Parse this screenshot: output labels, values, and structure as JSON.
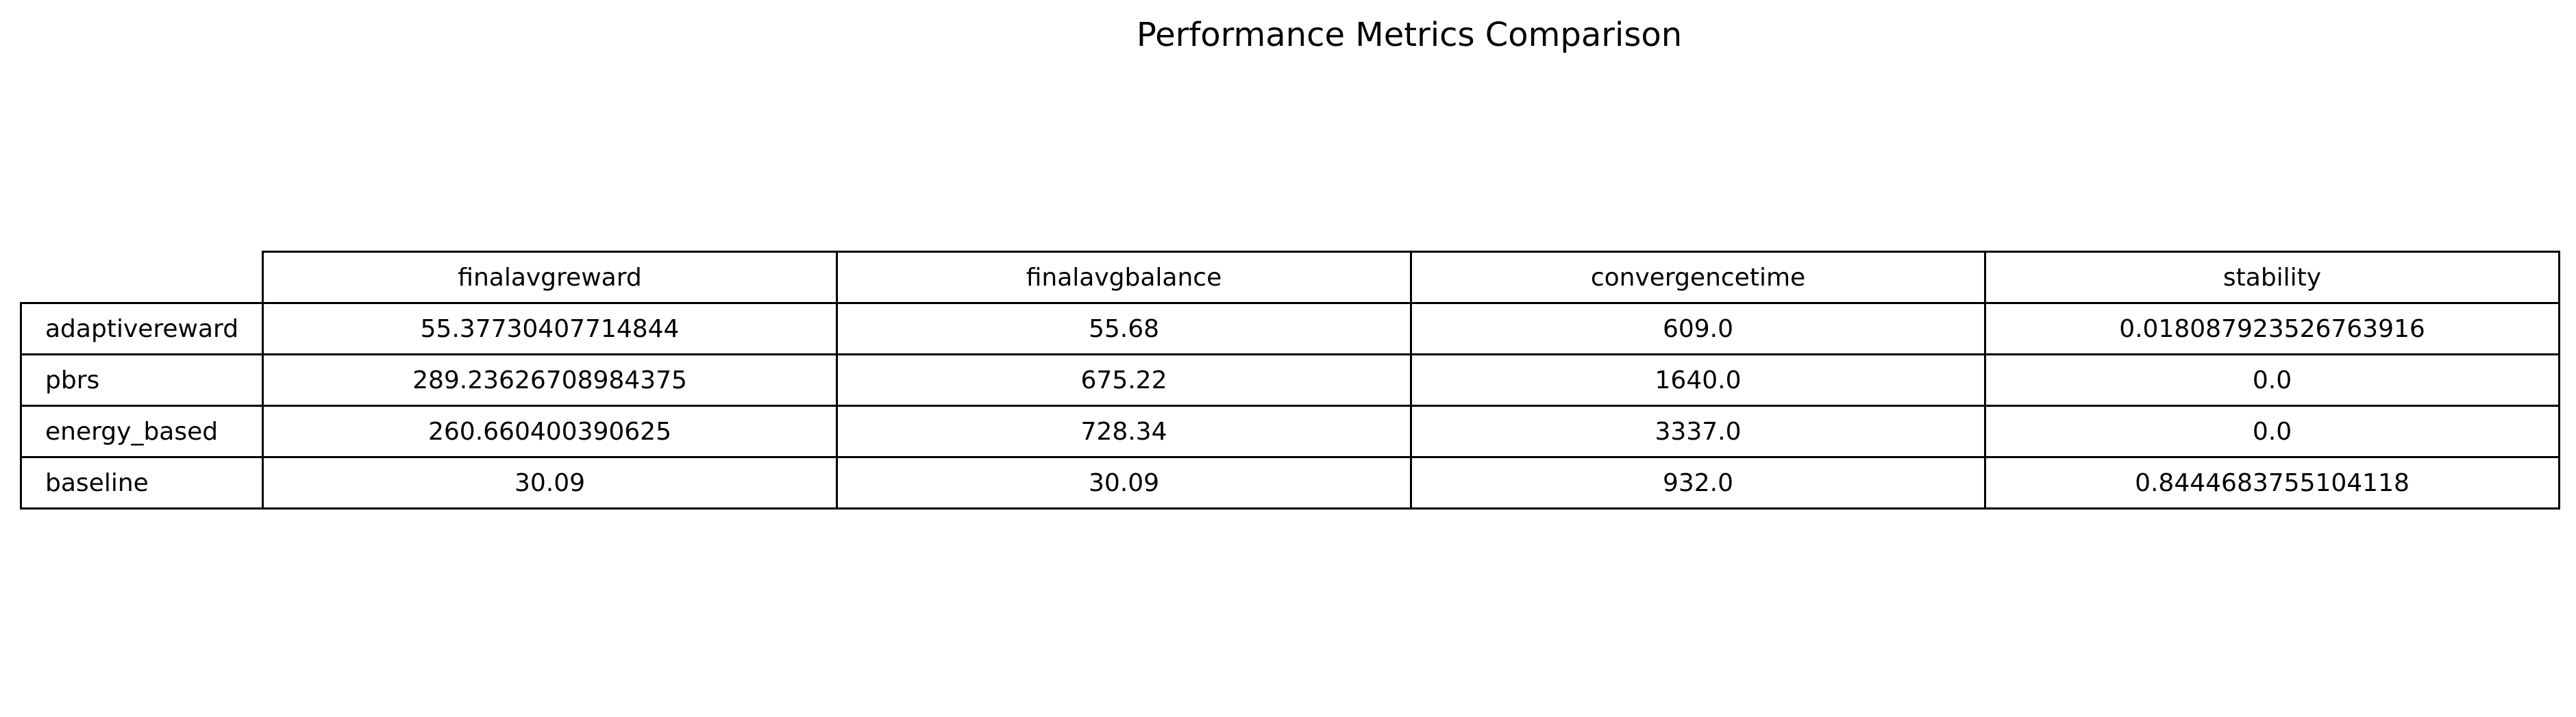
{
  "chart_data": {
    "type": "table",
    "title": "Performance Metrics Comparison",
    "columns": [
      "finalavgreward",
      "finalavgbalance",
      "convergencetime",
      "stability"
    ],
    "rows": [
      {
        "label": "adaptivereward",
        "values": [
          "55.37730407714844",
          "55.68",
          "609.0",
          "0.018087923526763916"
        ]
      },
      {
        "label": "pbrs",
        "values": [
          "289.23626708984375",
          "675.22",
          "1640.0",
          "0.0"
        ]
      },
      {
        "label": "energy_based",
        "values": [
          "260.660400390625",
          "728.34",
          "3337.0",
          "0.0"
        ]
      },
      {
        "label": "baseline",
        "values": [
          "30.09",
          "30.09",
          "932.0",
          "0.8444683755104118"
        ]
      }
    ]
  }
}
